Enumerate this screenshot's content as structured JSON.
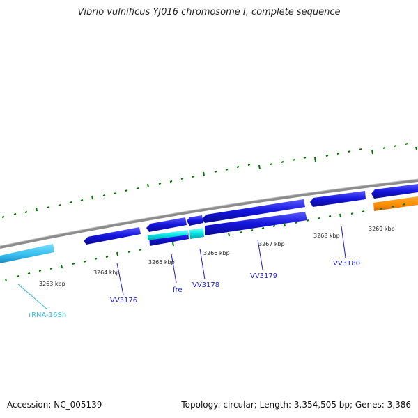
{
  "title": "Vibrio vulnificus YJ016 chromosome I, complete sequence",
  "footer": {
    "accession": "Accession: NC_005139",
    "topology": "Topology: circular; Length: 3,354,505 bp; Genes: 3,386"
  },
  "scale": {
    "unit": "kbp",
    "ticks": [
      {
        "label": "3263 kbp",
        "kbp": 3263
      },
      {
        "label": "3264 kbp",
        "kbp": 3264
      },
      {
        "label": "3265 kbp",
        "kbp": 3265
      },
      {
        "label": "3266 kbp",
        "kbp": 3266
      },
      {
        "label": "3267 kbp",
        "kbp": 3267
      },
      {
        "label": "3268 kbp",
        "kbp": 3268
      },
      {
        "label": "3269 kbp",
        "kbp": 3269
      }
    ]
  },
  "genes": [
    {
      "label": "rRNA-16Sh",
      "type": "rRNA"
    },
    {
      "label": "VV3176",
      "type": "CDS"
    },
    {
      "label": "fre",
      "type": "CDS"
    },
    {
      "label": "VV3178",
      "type": "CDS"
    },
    {
      "label": "VV3179",
      "type": "CDS"
    },
    {
      "label": "VV3180",
      "type": "CDS"
    }
  ],
  "colors": {
    "cds": "#1414dc",
    "cds_highlight": "#00e5e5",
    "rrna": "#33bbee",
    "other": "#ff8c00",
    "backbone": "#888888",
    "ticks": "#007700"
  }
}
